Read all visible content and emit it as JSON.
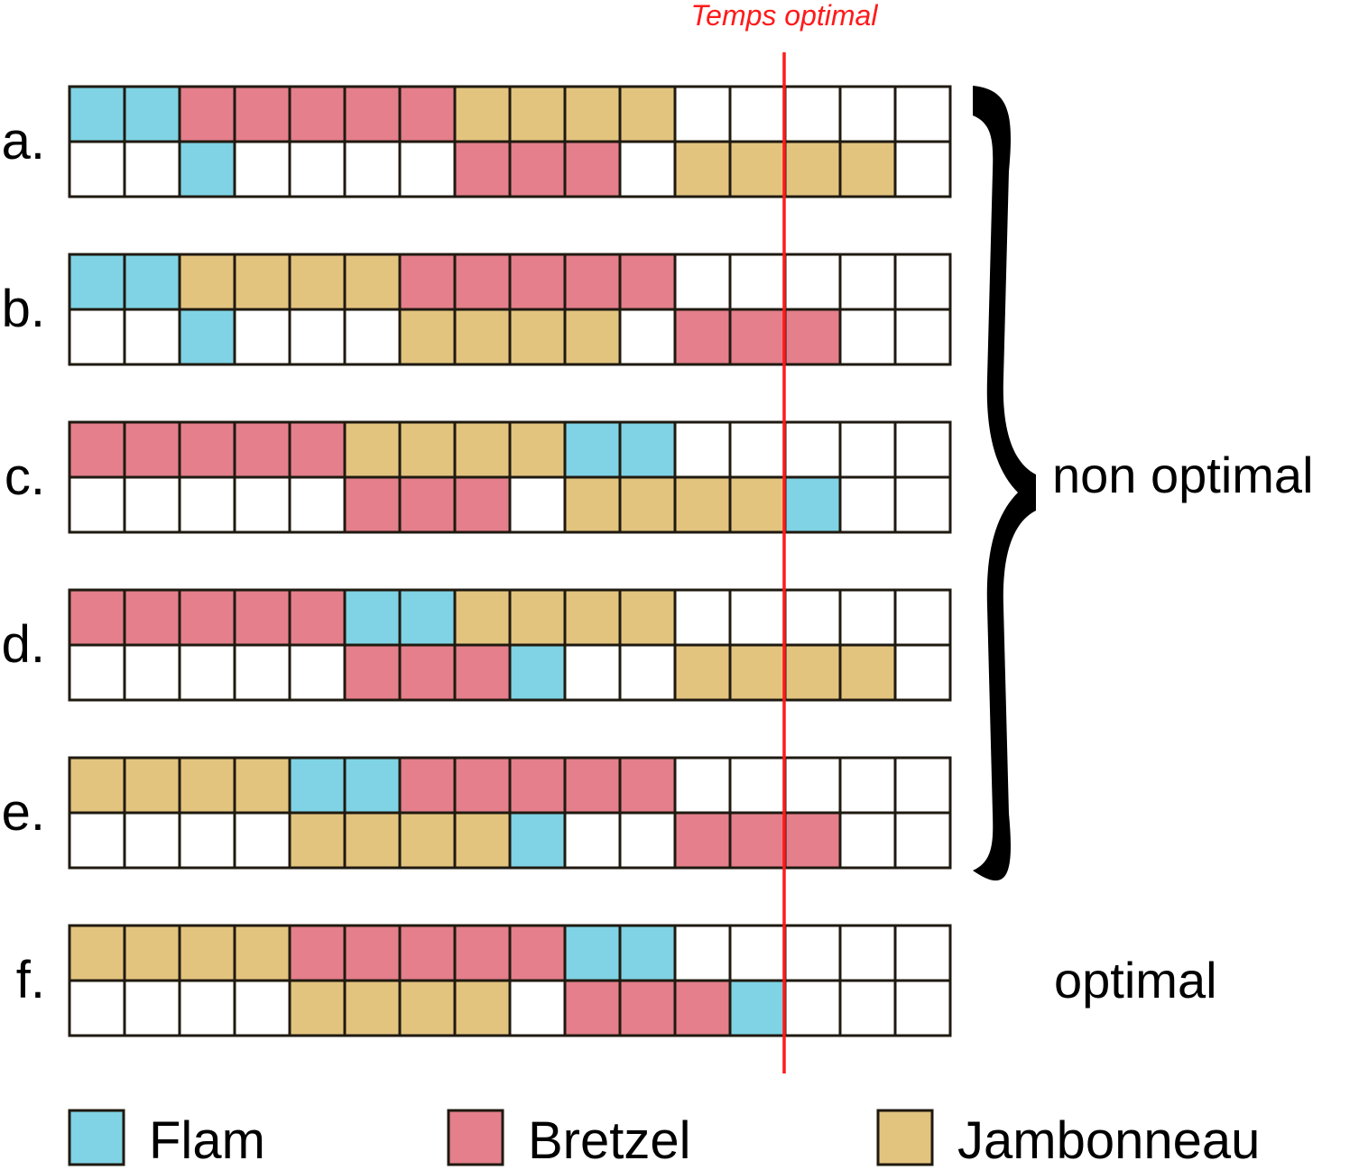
{
  "optimal_line": {
    "label": "Temps optimal",
    "after_column": 13,
    "color": "#ff1a1a"
  },
  "grid": {
    "columns": 16,
    "cell_stroke": "#1f1a10"
  },
  "colors": {
    "F": "#7fd3e4",
    "B": "#e47f8b",
    "J": "#e3c47f",
    "_": "#ffffff"
  },
  "legend": [
    {
      "code": "F",
      "label": "Flam"
    },
    {
      "code": "B",
      "label": "Bretzel"
    },
    {
      "code": "J",
      "label": "Jambonneau"
    }
  ],
  "schedules": [
    {
      "label": "a.",
      "rows": [
        "FFBBBBBJJJJ_____",
        "__F____BBB_JJJJ_"
      ]
    },
    {
      "label": "b.",
      "rows": [
        "FFJJJJBBBBB_____",
        "__F___JJJJ_BBB__"
      ]
    },
    {
      "label": "c.",
      "rows": [
        "BBBBBJJJJFF_____",
        "_____BBB_JJJJF__"
      ]
    },
    {
      "label": "d.",
      "rows": [
        "BBBBBFFJJJJ_____",
        "_____BBBF__JJJJ_"
      ]
    },
    {
      "label": "e.",
      "rows": [
        "JJJJFFBBBBB_____",
        "____JJJJF__BBB__"
      ]
    },
    {
      "label": "f.",
      "rows": [
        "JJJJBBBBBFF_____",
        "____JJJJ_BBBF___"
      ]
    }
  ],
  "groups": {
    "non_optimal": "non optimal",
    "optimal": "optimal"
  }
}
